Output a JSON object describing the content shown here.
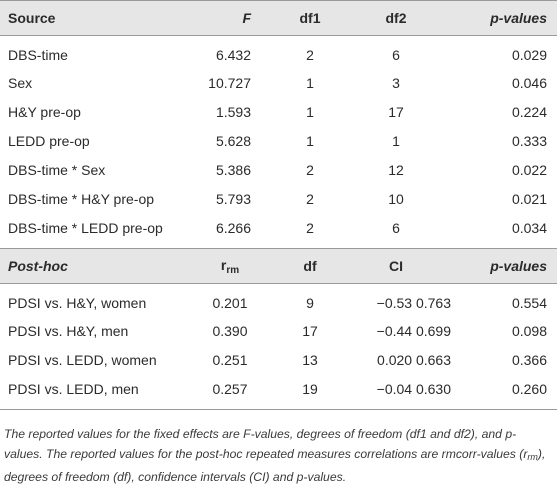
{
  "fixed_header": {
    "source": "Source",
    "f": "F",
    "df1": "df1",
    "df2": "df2",
    "p": "p-values"
  },
  "fixed_rows": [
    {
      "source": "DBS-time",
      "f": "6.432",
      "df1": "2",
      "df2": "6",
      "p": "0.029"
    },
    {
      "source": "Sex",
      "f": "10.727",
      "df1": "1",
      "df2": "3",
      "p": "0.046"
    },
    {
      "source": "H&Y pre-op",
      "f": "1.593",
      "df1": "1",
      "df2": "17",
      "p": "0.224"
    },
    {
      "source": "LEDD pre-op",
      "f": "5.628",
      "df1": "1",
      "df2": "1",
      "p": "0.333"
    },
    {
      "source": "DBS-time * Sex",
      "f": "5.386",
      "df1": "2",
      "df2": "12",
      "p": "0.022"
    },
    {
      "source": "DBS-time * H&Y pre-op",
      "f": "5.793",
      "df1": "2",
      "df2": "10",
      "p": "0.021"
    },
    {
      "source": "DBS-time * LEDD pre-op",
      "f": "6.266",
      "df1": "2",
      "df2": "6",
      "p": "0.034"
    }
  ],
  "posthoc_header": {
    "label": "Post-hoc",
    "r_main": "r",
    "r_sub": "rm",
    "df": "df",
    "ci": "CI",
    "p": "p-values"
  },
  "posthoc_rows": [
    {
      "label": "PDSI vs. H&Y, women",
      "r": "0.201",
      "df": "9",
      "ci": "−0.53 0.763",
      "p": "0.554"
    },
    {
      "label": "PDSI vs. H&Y, men",
      "r": "0.390",
      "df": "17",
      "ci": "−0.44 0.699",
      "p": "0.098"
    },
    {
      "label": "PDSI vs. LEDD, women",
      "r": "0.251",
      "df": "13",
      "ci": "0.020 0.663",
      "p": "0.366"
    },
    {
      "label": "PDSI vs. LEDD, men",
      "r": "0.257",
      "df": "19",
      "ci": "−0.04 0.630",
      "p": "0.260"
    }
  ],
  "footnote": {
    "part1": "The reported values for the fixed effects are F-values, degrees of freedom (df1 and df2), and p-values. The reported values for the post-hoc repeated measures correlations are rmcorr-values (r",
    "sub": "rm",
    "part2": "), degrees of freedom (df), confidence intervals (CI) and p-values."
  }
}
